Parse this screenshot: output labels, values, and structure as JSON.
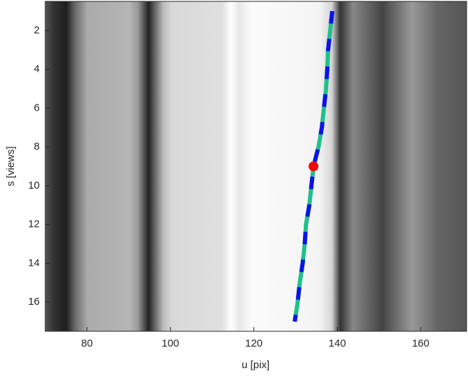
{
  "chart_data": {
    "type": "line",
    "x_label": "u [pix]",
    "y_label": "s [views]",
    "xlim": [
      70,
      171
    ],
    "ylim": [
      0.5,
      17.5
    ],
    "y_reversed": true,
    "xticks": [
      80,
      100,
      120,
      140,
      160
    ],
    "yticks": [
      2,
      4,
      6,
      8,
      10,
      12,
      14,
      16
    ],
    "series": [
      {
        "color": "#20c08a",
        "dash_color": "#0a14e6",
        "x": [
          138.8,
          138.3,
          137.8,
          137.6,
          137.3,
          136.8,
          136.3,
          135.5,
          134.3,
          133.8,
          133.3,
          132.5,
          132.2,
          131.7,
          131.0,
          130.5,
          129.8
        ],
        "values": [
          1,
          2,
          3,
          4,
          5,
          6,
          7,
          8,
          9,
          10,
          11,
          12,
          13,
          14,
          15,
          16,
          17
        ]
      }
    ],
    "points": [
      {
        "color": "#ff0000",
        "x": 134.3,
        "y": 9
      }
    ]
  }
}
